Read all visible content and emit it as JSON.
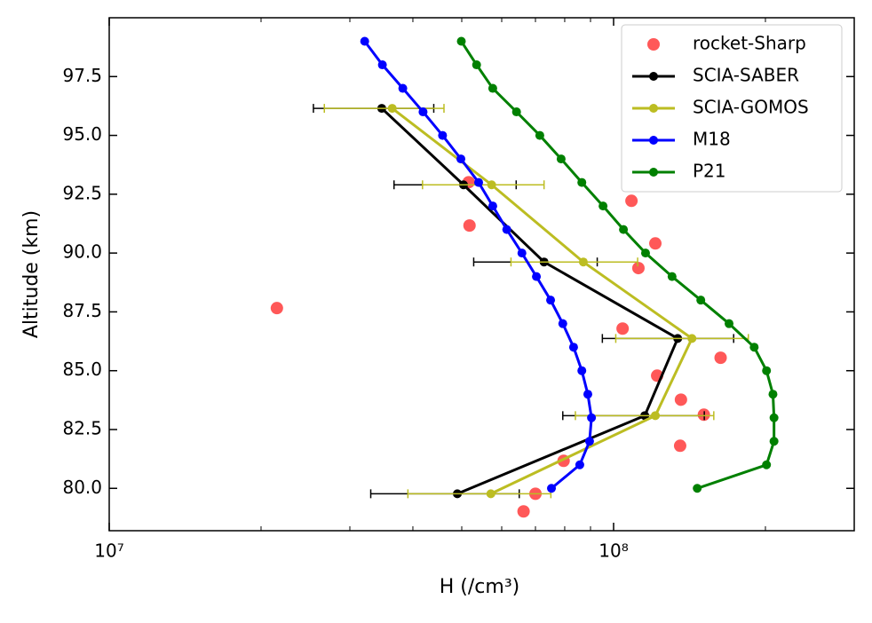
{
  "chart_data": {
    "type": "line",
    "xlabel": "H (/cm³)",
    "ylabel": "Altitude (km)",
    "xscale": "log",
    "xlim": [
      10000000,
      300000000
    ],
    "ylim": [
      78.2,
      100
    ],
    "xticks": [
      {
        "value": 10000000,
        "label": "10⁷"
      },
      {
        "value": 100000000,
        "label": "10⁸"
      }
    ],
    "xminorticks": [
      20000000,
      30000000,
      40000000,
      50000000,
      60000000,
      70000000,
      80000000,
      90000000,
      200000000,
      300000000
    ],
    "yticks": [
      {
        "value": 80,
        "label": "80.0"
      },
      82.5,
      {
        "value": 85,
        "label": "85.0"
      },
      87.5,
      {
        "value": 90,
        "label": "90.0"
      },
      92.5,
      {
        "value": 95,
        "label": "95.0"
      },
      97.5
    ],
    "legend": "upper right",
    "series": [
      {
        "name": "rocket-Sharp",
        "type": "scatter",
        "color": "#ff2020",
        "x": [
          21500000,
          51600000,
          51800000,
          108500000,
          121000000,
          112000000,
          104200000,
          163000000,
          122000000,
          136000000,
          151000000,
          135500000,
          79600000,
          70000000,
          66300000
        ],
        "y": [
          87.66,
          93.01,
          91.17,
          92.22,
          90.41,
          89.36,
          86.79,
          85.55,
          84.79,
          83.77,
          83.13,
          81.81,
          81.17,
          79.77,
          79.02
        ]
      },
      {
        "name": "SCIA-SABER",
        "type": "line",
        "color": "#000000",
        "x": [
          34700000,
          50400000,
          72800000,
          134000000,
          115300000,
          49000000
        ],
        "y": [
          96.15,
          92.9,
          89.62,
          86.37,
          83.09,
          79.77
        ],
        "xerr": [
          9300000,
          13700000,
          20000000,
          39000000,
          36000000,
          16000000
        ]
      },
      {
        "name": "SCIA-GOMOS",
        "type": "line",
        "color": "#bcbd22",
        "x": [
          36400000,
          57300000,
          87100000,
          143000000,
          121000000,
          57100000
        ],
        "y": [
          96.15,
          92.9,
          89.62,
          86.37,
          83.09,
          79.77
        ],
        "xerr": [
          9700000,
          15500000,
          24500000,
          42000000,
          37000000,
          18000000
        ]
      },
      {
        "name": "M18",
        "type": "line",
        "color": "#0000ff",
        "x": [
          32100000,
          34800000,
          38200000,
          41900000,
          45800000,
          49800000,
          54000000,
          57600000,
          61400000,
          65800000,
          70300000,
          75000000,
          79300000,
          83300000,
          86500000,
          88900000,
          90400000,
          89600000,
          85700000,
          75300000
        ],
        "y": [
          99,
          98,
          97,
          96,
          95,
          94,
          93,
          92,
          91,
          90,
          89,
          88,
          87,
          86,
          85,
          84,
          83,
          82,
          81,
          80
        ]
      },
      {
        "name": "P21",
        "type": "line",
        "color": "#008000",
        "x": [
          49900000,
          53500000,
          57600000,
          64200000,
          71400000,
          78700000,
          86500000,
          95300000,
          104600000,
          115700000,
          130600000,
          148900000,
          169400000,
          190000000,
          201000000,
          207000000,
          208000000,
          208000000,
          201000000,
          146500000
        ],
        "y": [
          99,
          98,
          97,
          96,
          95,
          94,
          93,
          92,
          91,
          90,
          89,
          88,
          87,
          86,
          85,
          84,
          83,
          82,
          81,
          80
        ]
      }
    ]
  }
}
